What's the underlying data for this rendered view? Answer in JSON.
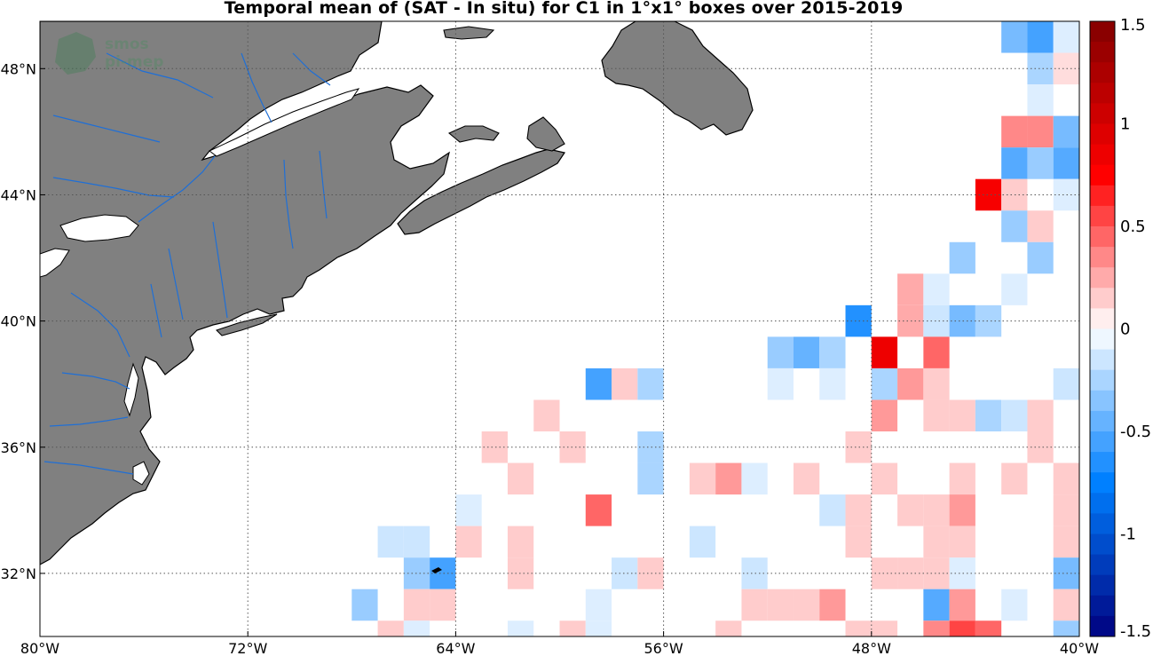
{
  "title": "Temporal mean of (SAT - In situ) for C1 in 1°x1° boxes over 2015-2019",
  "watermark": {
    "line1": "smos",
    "line2": "pi-mep"
  },
  "map": {
    "lon_range": [
      -80,
      -40
    ],
    "lat_range": [
      30,
      49.5
    ],
    "x_ticks": [
      {
        "lon": -80,
        "label": "80°W"
      },
      {
        "lon": -72,
        "label": "72°W"
      },
      {
        "lon": -64,
        "label": "64°W"
      },
      {
        "lon": -56,
        "label": "56°W"
      },
      {
        "lon": -48,
        "label": "48°W"
      },
      {
        "lon": -40,
        "label": "40°W"
      }
    ],
    "y_ticks": [
      {
        "lat": 32,
        "label": "32°N"
      },
      {
        "lat": 36,
        "label": "36°N"
      },
      {
        "lat": 40,
        "label": "40°N"
      },
      {
        "lat": 44,
        "label": "44°N"
      },
      {
        "lat": 48,
        "label": "48°N"
      }
    ],
    "land_color": "#808080",
    "river_color": "#1f6fd6",
    "grid": "dotted"
  },
  "chart_data": {
    "type": "heatmap",
    "title": "Temporal mean of (SAT - In situ) for C1 in 1°x1° boxes over 2015-2019",
    "cell_size_deg": 1,
    "cells": [
      {
        "lon": -42.5,
        "lat": 49.0,
        "v": -0.4
      },
      {
        "lon": -41.5,
        "lat": 49.0,
        "v": -0.55
      },
      {
        "lon": -40.5,
        "lat": 49.0,
        "v": -0.1
      },
      {
        "lon": -41.5,
        "lat": 48.0,
        "v": -0.25
      },
      {
        "lon": -40.5,
        "lat": 48.0,
        "v": 0.1
      },
      {
        "lon": -41.5,
        "lat": 47.0,
        "v": -0.1
      },
      {
        "lon": -42.5,
        "lat": 46.0,
        "v": 0.35
      },
      {
        "lon": -41.5,
        "lat": 46.0,
        "v": 0.35
      },
      {
        "lon": -40.5,
        "lat": 46.0,
        "v": -0.4
      },
      {
        "lon": -42.5,
        "lat": 45.0,
        "v": -0.5
      },
      {
        "lon": -41.5,
        "lat": 45.0,
        "v": -0.3
      },
      {
        "lon": -40.5,
        "lat": 45.0,
        "v": -0.5
      },
      {
        "lon": -43.5,
        "lat": 44.0,
        "v": 0.8
      },
      {
        "lon": -42.5,
        "lat": 44.0,
        "v": 0.15
      },
      {
        "lon": -40.5,
        "lat": 44.0,
        "v": -0.1
      },
      {
        "lon": -42.5,
        "lat": 43.0,
        "v": -0.3
      },
      {
        "lon": -41.5,
        "lat": 43.0,
        "v": 0.15
      },
      {
        "lon": -44.5,
        "lat": 42.0,
        "v": -0.3
      },
      {
        "lon": -41.5,
        "lat": 42.0,
        "v": -0.3
      },
      {
        "lon": -46.5,
        "lat": 41.0,
        "v": 0.25
      },
      {
        "lon": -45.5,
        "lat": 41.0,
        "v": -0.1
      },
      {
        "lon": -42.5,
        "lat": 41.0,
        "v": -0.1
      },
      {
        "lon": -48.5,
        "lat": 40.0,
        "v": -0.65
      },
      {
        "lon": -46.5,
        "lat": 40.0,
        "v": 0.25
      },
      {
        "lon": -45.5,
        "lat": 40.0,
        "v": -0.15
      },
      {
        "lon": -44.5,
        "lat": 40.0,
        "v": -0.4
      },
      {
        "lon": -43.5,
        "lat": 40.0,
        "v": -0.25
      },
      {
        "lon": -51.5,
        "lat": 39.0,
        "v": -0.3
      },
      {
        "lon": -50.5,
        "lat": 39.0,
        "v": -0.45
      },
      {
        "lon": -49.5,
        "lat": 39.0,
        "v": -0.25
      },
      {
        "lon": -47.5,
        "lat": 39.0,
        "v": 0.85
      },
      {
        "lon": -45.5,
        "lat": 39.0,
        "v": 0.45
      },
      {
        "lon": -58.5,
        "lat": 38.0,
        "v": -0.55
      },
      {
        "lon": -57.5,
        "lat": 38.0,
        "v": 0.15
      },
      {
        "lon": -56.5,
        "lat": 38.0,
        "v": -0.25
      },
      {
        "lon": -51.5,
        "lat": 38.0,
        "v": -0.1
      },
      {
        "lon": -49.5,
        "lat": 38.0,
        "v": -0.1
      },
      {
        "lon": -47.5,
        "lat": 38.0,
        "v": -0.25
      },
      {
        "lon": -46.5,
        "lat": 38.0,
        "v": 0.3
      },
      {
        "lon": -45.5,
        "lat": 38.0,
        "v": 0.15
      },
      {
        "lon": -40.5,
        "lat": 38.0,
        "v": -0.15
      },
      {
        "lon": -60.5,
        "lat": 37.0,
        "v": 0.15
      },
      {
        "lon": -47.5,
        "lat": 37.0,
        "v": 0.3
      },
      {
        "lon": -45.5,
        "lat": 37.0,
        "v": 0.15
      },
      {
        "lon": -44.5,
        "lat": 37.0,
        "v": 0.15
      },
      {
        "lon": -43.5,
        "lat": 37.0,
        "v": -0.25
      },
      {
        "lon": -42.5,
        "lat": 37.0,
        "v": -0.15
      },
      {
        "lon": -41.5,
        "lat": 37.0,
        "v": 0.15
      },
      {
        "lon": -62.5,
        "lat": 36.0,
        "v": 0.15
      },
      {
        "lon": -59.5,
        "lat": 36.0,
        "v": 0.15
      },
      {
        "lon": -56.5,
        "lat": 36.0,
        "v": -0.25
      },
      {
        "lon": -48.5,
        "lat": 36.0,
        "v": 0.15
      },
      {
        "lon": -41.5,
        "lat": 36.0,
        "v": 0.15
      },
      {
        "lon": -61.5,
        "lat": 35.0,
        "v": 0.15
      },
      {
        "lon": -56.5,
        "lat": 35.0,
        "v": -0.25
      },
      {
        "lon": -54.5,
        "lat": 35.0,
        "v": 0.15
      },
      {
        "lon": -53.5,
        "lat": 35.0,
        "v": 0.3
      },
      {
        "lon": -52.5,
        "lat": 35.0,
        "v": -0.1
      },
      {
        "lon": -50.5,
        "lat": 35.0,
        "v": 0.15
      },
      {
        "lon": -47.5,
        "lat": 35.0,
        "v": 0.15
      },
      {
        "lon": -44.5,
        "lat": 35.0,
        "v": 0.15
      },
      {
        "lon": -42.5,
        "lat": 35.0,
        "v": 0.15
      },
      {
        "lon": -40.5,
        "lat": 35.0,
        "v": 0.15
      },
      {
        "lon": -63.5,
        "lat": 34.0,
        "v": -0.1
      },
      {
        "lon": -58.5,
        "lat": 34.0,
        "v": 0.45
      },
      {
        "lon": -49.5,
        "lat": 34.0,
        "v": -0.15
      },
      {
        "lon": -48.5,
        "lat": 34.0,
        "v": 0.15
      },
      {
        "lon": -46.5,
        "lat": 34.0,
        "v": 0.15
      },
      {
        "lon": -45.5,
        "lat": 34.0,
        "v": 0.15
      },
      {
        "lon": -44.5,
        "lat": 34.0,
        "v": 0.3
      },
      {
        "lon": -40.5,
        "lat": 34.0,
        "v": 0.15
      },
      {
        "lon": -66.5,
        "lat": 33.0,
        "v": -0.15
      },
      {
        "lon": -65.5,
        "lat": 33.0,
        "v": -0.15
      },
      {
        "lon": -63.5,
        "lat": 33.0,
        "v": 0.15
      },
      {
        "lon": -61.5,
        "lat": 33.0,
        "v": 0.15
      },
      {
        "lon": -54.5,
        "lat": 33.0,
        "v": -0.15
      },
      {
        "lon": -48.5,
        "lat": 33.0,
        "v": 0.15
      },
      {
        "lon": -45.5,
        "lat": 33.0,
        "v": 0.15
      },
      {
        "lon": -44.5,
        "lat": 33.0,
        "v": 0.15
      },
      {
        "lon": -40.5,
        "lat": 33.0,
        "v": 0.15
      },
      {
        "lon": -65.5,
        "lat": 32.0,
        "v": -0.3
      },
      {
        "lon": -64.5,
        "lat": 32.0,
        "v": -0.55
      },
      {
        "lon": -61.5,
        "lat": 32.0,
        "v": 0.15
      },
      {
        "lon": -57.5,
        "lat": 32.0,
        "v": -0.15
      },
      {
        "lon": -56.5,
        "lat": 32.0,
        "v": 0.15
      },
      {
        "lon": -52.5,
        "lat": 32.0,
        "v": -0.15
      },
      {
        "lon": -47.5,
        "lat": 32.0,
        "v": 0.15
      },
      {
        "lon": -46.5,
        "lat": 32.0,
        "v": 0.15
      },
      {
        "lon": -45.5,
        "lat": 32.0,
        "v": 0.15
      },
      {
        "lon": -44.5,
        "lat": 32.0,
        "v": -0.1
      },
      {
        "lon": -40.5,
        "lat": 32.0,
        "v": -0.4
      },
      {
        "lon": -67.5,
        "lat": 31.0,
        "v": -0.3
      },
      {
        "lon": -65.5,
        "lat": 31.0,
        "v": 0.15
      },
      {
        "lon": -64.5,
        "lat": 31.0,
        "v": 0.15
      },
      {
        "lon": -58.5,
        "lat": 31.0,
        "v": -0.1
      },
      {
        "lon": -52.5,
        "lat": 31.0,
        "v": 0.15
      },
      {
        "lon": -51.5,
        "lat": 31.0,
        "v": 0.15
      },
      {
        "lon": -50.5,
        "lat": 31.0,
        "v": 0.15
      },
      {
        "lon": -49.5,
        "lat": 31.0,
        "v": 0.3
      },
      {
        "lon": -45.5,
        "lat": 31.0,
        "v": -0.5
      },
      {
        "lon": -44.5,
        "lat": 31.0,
        "v": 0.3
      },
      {
        "lon": -42.5,
        "lat": 31.0,
        "v": -0.1
      },
      {
        "lon": -40.5,
        "lat": 31.0,
        "v": 0.15
      },
      {
        "lon": -66.5,
        "lat": 30.0,
        "v": 0.15
      },
      {
        "lon": -65.5,
        "lat": 30.0,
        "v": -0.1
      },
      {
        "lon": -61.5,
        "lat": 30.0,
        "v": -0.1
      },
      {
        "lon": -59.5,
        "lat": 30.0,
        "v": 0.15
      },
      {
        "lon": -58.5,
        "lat": 30.0,
        "v": -0.1
      },
      {
        "lon": -53.5,
        "lat": 30.0,
        "v": 0.15
      },
      {
        "lon": -48.5,
        "lat": 30.0,
        "v": 0.15
      },
      {
        "lon": -47.5,
        "lat": 30.0,
        "v": 0.15
      },
      {
        "lon": -45.5,
        "lat": 30.0,
        "v": 0.35
      },
      {
        "lon": -44.5,
        "lat": 30.0,
        "v": 0.55
      },
      {
        "lon": -43.5,
        "lat": 30.0,
        "v": 0.45
      },
      {
        "lon": -40.5,
        "lat": 30.0,
        "v": -0.3
      }
    ]
  },
  "colorbar": {
    "range": [
      -1.5,
      1.5
    ],
    "steps": 30,
    "ticks": [
      {
        "value": 1.5,
        "label": "1.5"
      },
      {
        "value": 1,
        "label": "1"
      },
      {
        "value": 0.5,
        "label": "0.5"
      },
      {
        "value": 0,
        "label": "0"
      },
      {
        "value": -0.5,
        "label": "-0.5"
      },
      {
        "value": -1,
        "label": "-1"
      },
      {
        "value": -1.5,
        "label": "-1.5"
      }
    ]
  }
}
